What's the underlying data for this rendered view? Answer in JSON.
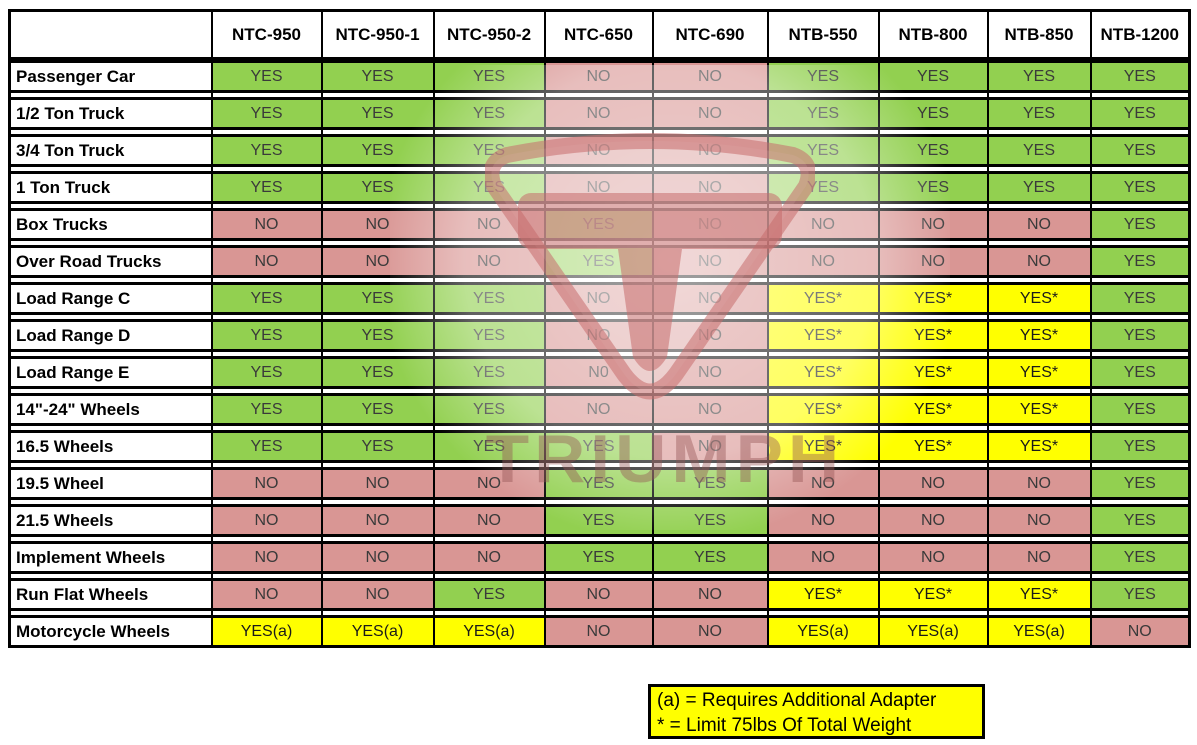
{
  "chart_data": {
    "type": "table",
    "columns": [
      "NTC-950",
      "NTC-950-1",
      "NTC-950-2",
      "NTC-650",
      "NTC-690",
      "NTB-550",
      "NTB-800",
      "NTB-850",
      "NTB-1200"
    ],
    "rows": [
      {
        "label": "Passenger Car",
        "values": [
          "YES",
          "YES",
          "YES",
          "NO",
          "NO",
          "YES",
          "YES",
          "YES",
          "YES"
        ]
      },
      {
        "label": "1/2 Ton Truck",
        "values": [
          "YES",
          "YES",
          "YES",
          "NO",
          "NO",
          "YES",
          "YES",
          "YES",
          "YES"
        ]
      },
      {
        "label": "3/4 Ton Truck",
        "values": [
          "YES",
          "YES",
          "YES",
          "NO",
          "NO",
          "YES",
          "YES",
          "YES",
          "YES"
        ]
      },
      {
        "label": "1 Ton Truck",
        "values": [
          "YES",
          "YES",
          "YES",
          "NO",
          "NO",
          "YES",
          "YES",
          "YES",
          "YES"
        ]
      },
      {
        "label": "Box Trucks",
        "values": [
          "NO",
          "NO",
          "NO",
          "YES",
          "NO",
          "NO",
          "NO",
          "NO",
          "YES"
        ]
      },
      {
        "label": "Over Road Trucks",
        "values": [
          "NO",
          "NO",
          "NO",
          "YES",
          "NO",
          "NO",
          "NO",
          "NO",
          "YES"
        ]
      },
      {
        "label": "Load Range C",
        "values": [
          "YES",
          "YES",
          "YES",
          "NO",
          "NO",
          "YES*",
          "YES*",
          "YES*",
          "YES"
        ]
      },
      {
        "label": "Load Range D",
        "values": [
          "YES",
          "YES",
          "YES",
          "NO",
          "NO",
          "YES*",
          "YES*",
          "YES*",
          "YES"
        ]
      },
      {
        "label": "Load Range E",
        "values": [
          "YES",
          "YES",
          "YES",
          "N0",
          "NO",
          "YES*",
          "YES*",
          "YES*",
          "YES"
        ]
      },
      {
        "label": "14\"-24\" Wheels",
        "values": [
          "YES",
          "YES",
          "YES",
          "NO",
          "NO",
          "YES*",
          "YES*",
          "YES*",
          "YES"
        ]
      },
      {
        "label": "16.5 Wheels",
        "values": [
          "YES",
          "YES",
          "YES",
          "YES",
          "NO",
          "YES*",
          "YES*",
          "YES*",
          "YES"
        ]
      },
      {
        "label": "19.5 Wheel",
        "values": [
          "NO",
          "NO",
          "NO",
          "YES",
          "YES",
          "NO",
          "NO",
          "NO",
          "YES"
        ]
      },
      {
        "label": "21.5 Wheels",
        "values": [
          "NO",
          "NO",
          "NO",
          "YES",
          "YES",
          "NO",
          "NO",
          "NO",
          "YES"
        ]
      },
      {
        "label": "Implement Wheels",
        "values": [
          "NO",
          "NO",
          "NO",
          "YES",
          "YES",
          "NO",
          "NO",
          "NO",
          "YES"
        ]
      },
      {
        "label": "Run Flat Wheels",
        "values": [
          "NO",
          "NO",
          "YES",
          "NO",
          "NO",
          "YES*",
          "YES*",
          "YES*",
          "YES"
        ]
      },
      {
        "label": "Motorcycle Wheels",
        "values": [
          "YES(a)",
          "YES(a)",
          "YES(a)",
          "NO",
          "NO",
          "YES(a)",
          "YES(a)",
          "YES(a)",
          "NO"
        ]
      }
    ],
    "cell_colors": {
      "yes": "#92D050",
      "no": "#D99694",
      "conditional": "#FFFF00"
    },
    "layout": {
      "grid": "black-borders",
      "row_gaps": true
    }
  },
  "legend": {
    "line1": "(a) = Requires Additional Adapter",
    "line2": "* = Limit 75lbs Of Total Weight",
    "background": "#FFFF00"
  },
  "watermark": {
    "text": "TRIUMPH",
    "logo": "triumph-shield-logo",
    "color": "#C97E7E"
  }
}
